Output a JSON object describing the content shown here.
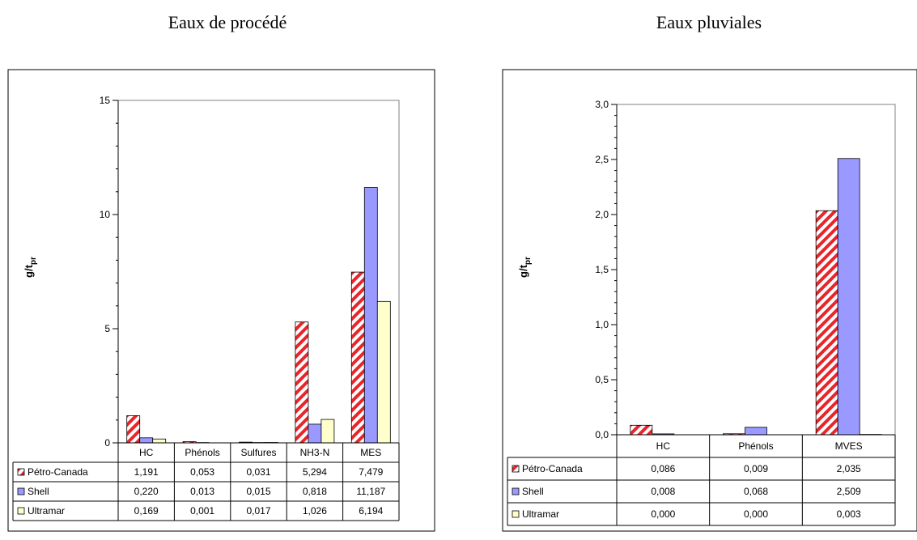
{
  "colors": {
    "petro_stripe": "#e8252a",
    "shell_fill": "#9999ff",
    "ultramar_fill": "#ffffcc",
    "grid": "#000000"
  },
  "chart_data": [
    {
      "type": "bar",
      "title": "Eaux de procédé",
      "ylabel_main": "g/t",
      "ylabel_sub": "pr",
      "ylim": [
        0,
        15
      ],
      "yticks": [
        "0",
        "5",
        "10",
        "15"
      ],
      "ytick_values": [
        0,
        5,
        10,
        15
      ],
      "categories": [
        "HC",
        "Phénols",
        "Sulfures",
        "NH3-N",
        "MES"
      ],
      "legend": "data table below chart",
      "series": [
        {
          "name": "Pétro-Canada",
          "style": "hatch",
          "values": [
            1.191,
            0.053,
            0.031,
            5.294,
            7.479
          ],
          "labels": [
            "1,191",
            "0,053",
            "0,031",
            "5,294",
            "7,479"
          ]
        },
        {
          "name": "Shell",
          "style": "solid-blue",
          "values": [
            0.22,
            0.013,
            0.015,
            0.818,
            11.187
          ],
          "labels": [
            "0,220",
            "0,013",
            "0,015",
            "0,818",
            "11,187"
          ]
        },
        {
          "name": "Ultramar",
          "style": "solid-yellow",
          "values": [
            0.169,
            0.001,
            0.017,
            1.026,
            6.194
          ],
          "labels": [
            "0,169",
            "0,001",
            "0,017",
            "1,026",
            "6,194"
          ]
        }
      ]
    },
    {
      "type": "bar",
      "title": "Eaux pluviales",
      "ylabel_main": "g/t",
      "ylabel_sub": "pr",
      "ylim": [
        0,
        3
      ],
      "yticks": [
        "0,0",
        "0,5",
        "1,0",
        "1,5",
        "2,0",
        "2,5",
        "3,0"
      ],
      "ytick_values": [
        0,
        0.5,
        1,
        1.5,
        2,
        2.5,
        3
      ],
      "categories": [
        "HC",
        "Phénols",
        "MVES"
      ],
      "legend": "data table below chart",
      "series": [
        {
          "name": "Pétro-Canada",
          "style": "hatch",
          "values": [
            0.086,
            0.009,
            2.035
          ],
          "labels": [
            "0,086",
            "0,009",
            "2,035"
          ]
        },
        {
          "name": "Shell",
          "style": "solid-blue",
          "values": [
            0.008,
            0.068,
            2.509
          ],
          "labels": [
            "0,008",
            "0,068",
            "2,509"
          ]
        },
        {
          "name": "Ultramar",
          "style": "solid-yellow",
          "values": [
            0.0,
            0.0,
            0.003
          ],
          "labels": [
            "0,000",
            "0,000",
            "0,003"
          ]
        }
      ]
    }
  ]
}
